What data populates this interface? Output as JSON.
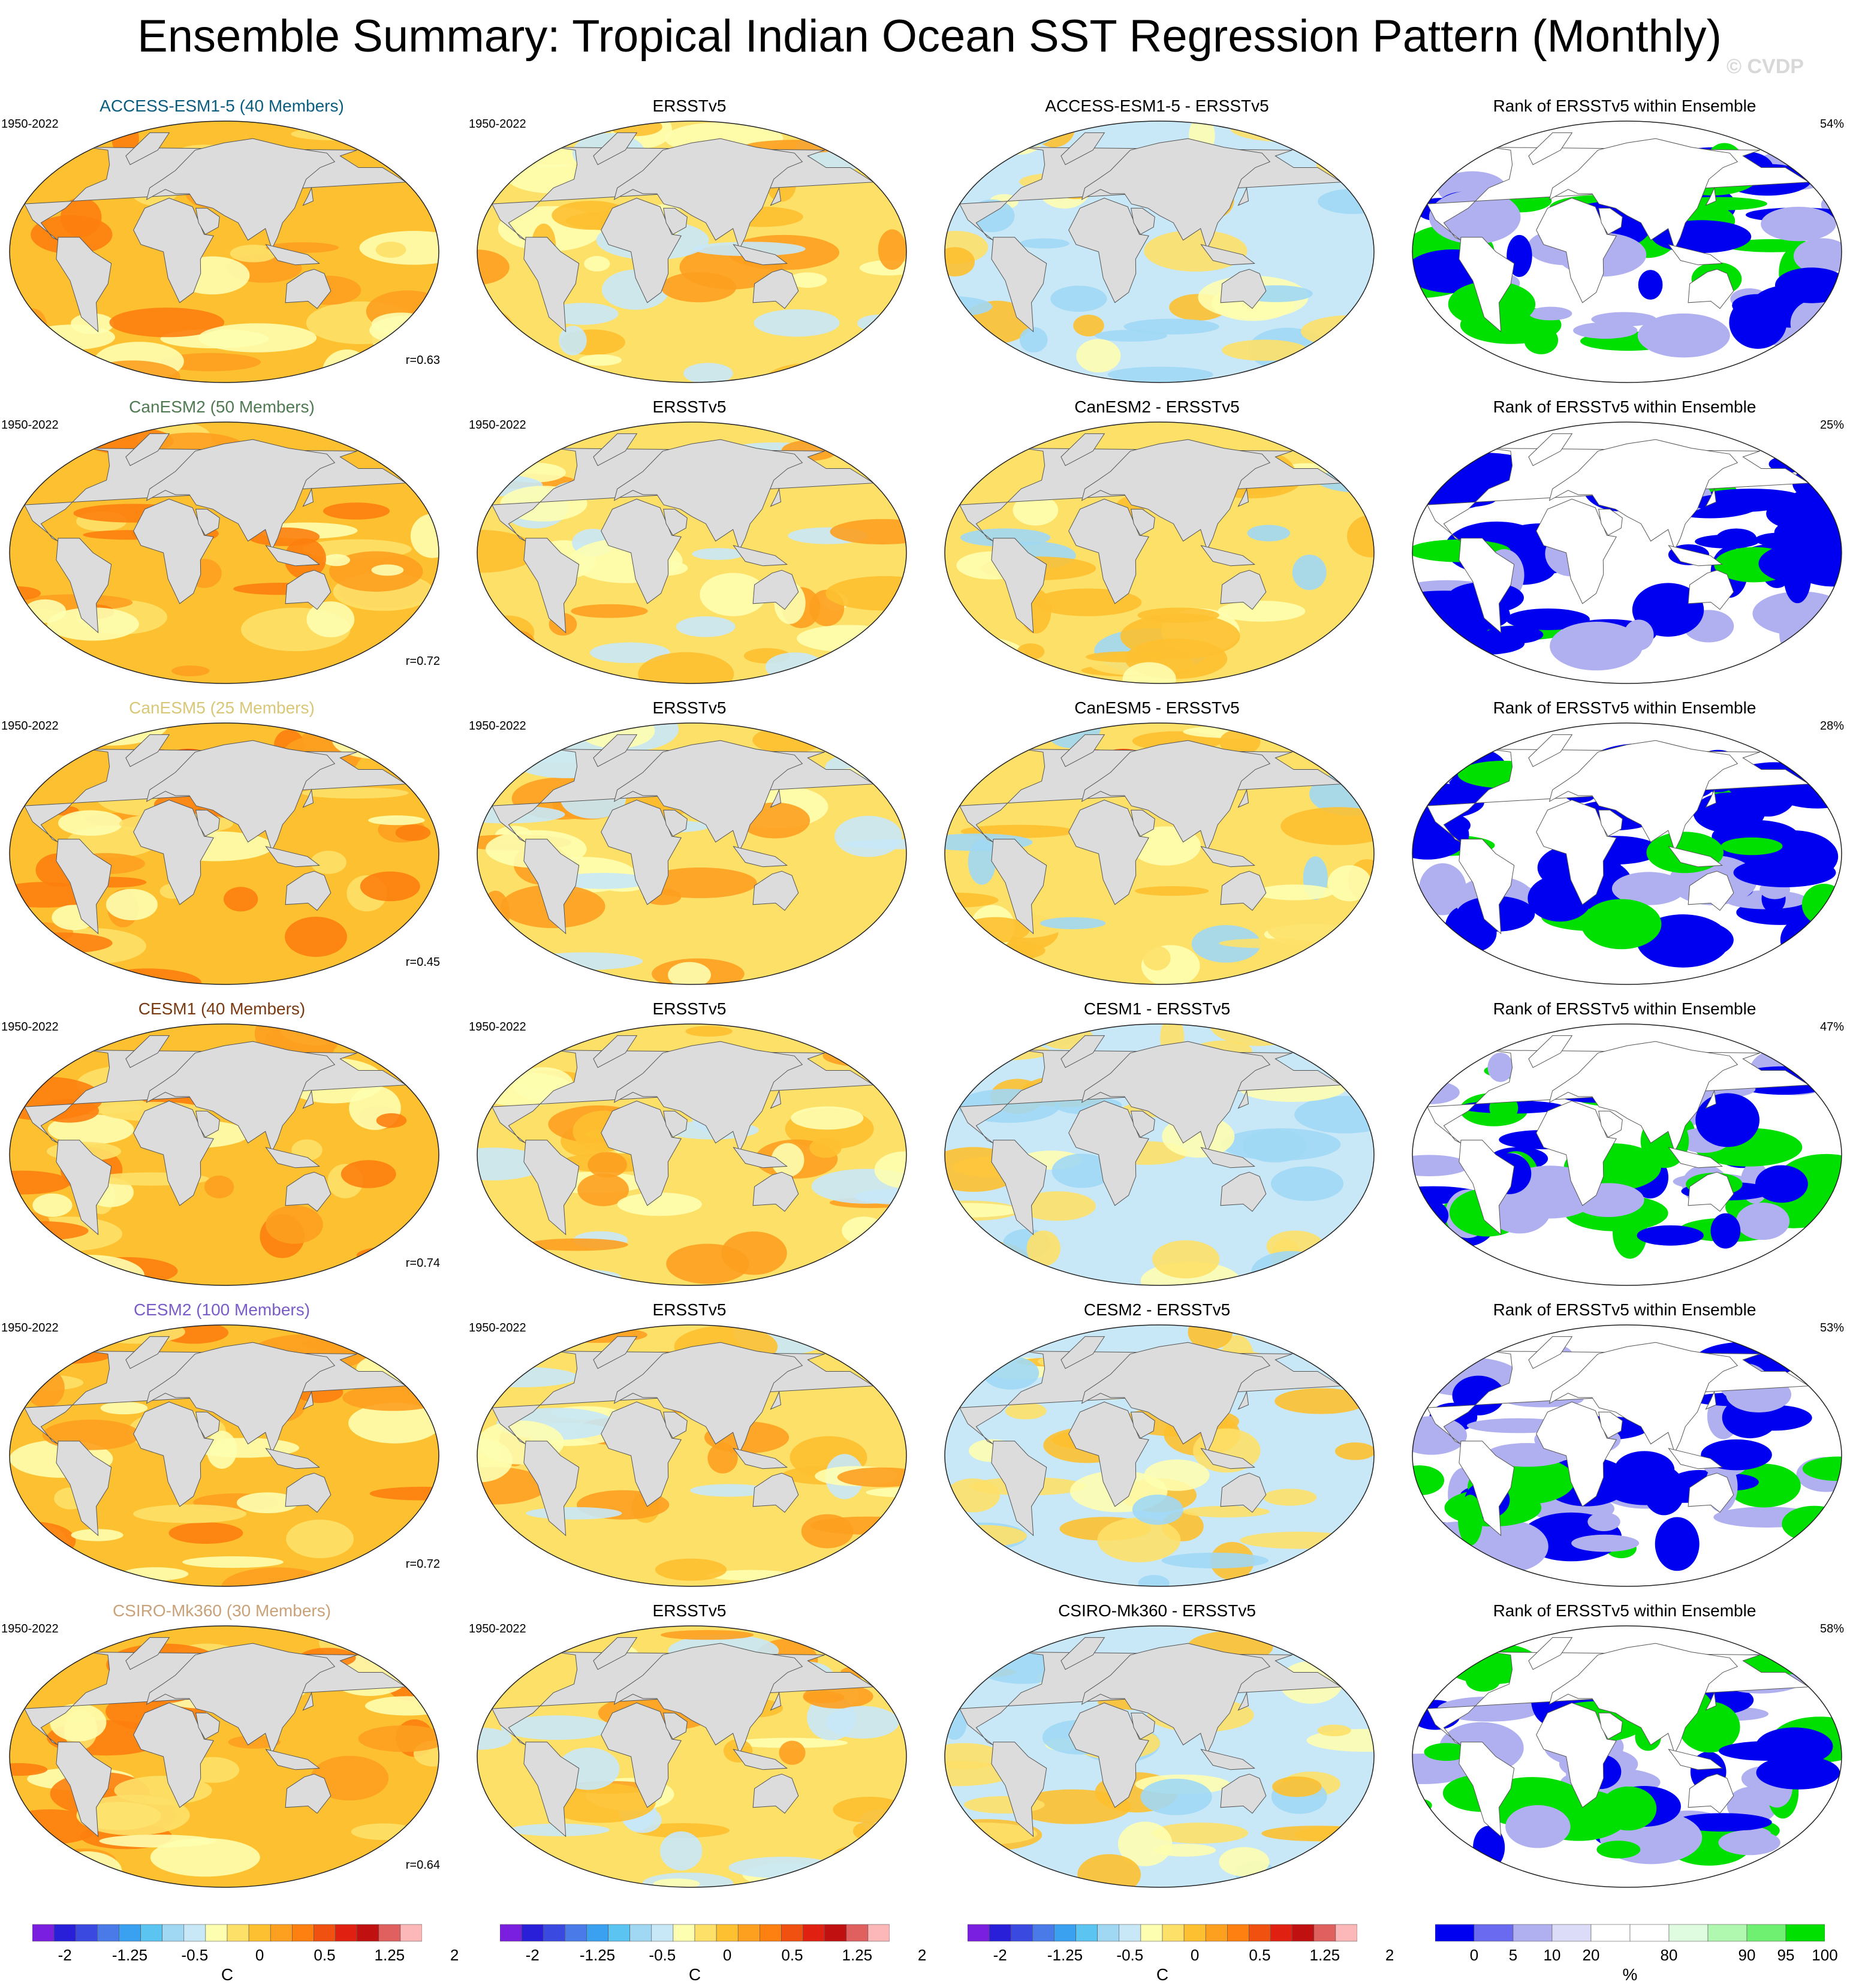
{
  "title": "Ensemble Summary: Tropical Indian Ocean SST Regression Pattern (Monthly)",
  "watermark": "© CVDP",
  "rows": [
    {
      "model": "ACCESS-ESM1-5 (40 Members)",
      "color": "#0b5d7f",
      "period": "1950-2022",
      "corr": "r=0.63",
      "diff": "ACCESS-ESM1-5 - ERSSTv5",
      "pct": "54%"
    },
    {
      "model": "CanESM2 (50 Members)",
      "color": "#4f7a52",
      "period": "1950-2022",
      "corr": "r=0.72",
      "diff": "CanESM2 - ERSSTv5",
      "pct": "25%"
    },
    {
      "model": "CanESM5 (25 Members)",
      "color": "#d9c777",
      "period": "1950-2022",
      "corr": "r=0.45",
      "diff": "CanESM5 - ERSSTv5",
      "pct": "28%"
    },
    {
      "model": "CESM1 (40 Members)",
      "color": "#7a3a12",
      "period": "1950-2022",
      "corr": "r=0.74",
      "diff": "CESM1 - ERSSTv5",
      "pct": "47%"
    },
    {
      "model": "CESM2 (100 Members)",
      "color": "#7a5cc8",
      "period": "1950-2022",
      "corr": "r=0.72",
      "diff": "CESM2 - ERSSTv5",
      "pct": "53%"
    },
    {
      "model": "CSIRO-Mk360 (30 Members)",
      "color": "#caa27a",
      "period": "1950-2022",
      "corr": "r=0.64",
      "diff": "CSIRO-Mk360 - ERSSTv5",
      "pct": "58%"
    }
  ],
  "obs_title": "ERSSTv5",
  "obs_period": "1950-2022",
  "rank_title": "Rank of ERSSTv5 within Ensemble",
  "colorbar_sst": {
    "ticks": [
      "-2",
      "-1.25",
      "-0.5",
      "0",
      "0.5",
      "1.25",
      "2"
    ],
    "unit": "C",
    "colors": [
      "#7a1fe0",
      "#2a1fd8",
      "#3a4ae0",
      "#4a7ae8",
      "#3aa0f0",
      "#5cc4f0",
      "#a0d8f4",
      "#c8e8f8",
      "#fefeb0",
      "#fde068",
      "#fdc030",
      "#fda020",
      "#fd8010",
      "#f05010",
      "#e02010",
      "#c01010",
      "#e06060",
      "#fcb8b8"
    ]
  },
  "colorbar_rank": {
    "ticks": [
      "0",
      "5",
      "10",
      "20",
      "80",
      "90",
      "95",
      "100"
    ],
    "unit": "%",
    "colors": [
      "#0000f0",
      "#6a6af0",
      "#b0b0f0",
      "#dcdcf8",
      "#ffffff",
      "#ffffff",
      "#e0fce0",
      "#b0f8b0",
      "#70f070",
      "#00e000"
    ]
  }
}
